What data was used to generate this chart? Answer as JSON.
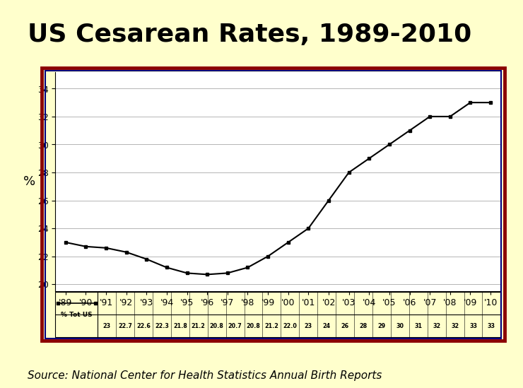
{
  "title": "US Cesarean Rates, 1989-2010",
  "source": "Source: National Center for Health Statistics Annual Birth Reports",
  "ylabel": "%",
  "years": [
    "'89",
    "'90",
    "'91",
    "'92",
    "'93",
    "'94",
    "'95",
    "'96",
    "'97",
    "'98",
    "'99",
    "'00",
    "'01",
    "'02",
    "'03",
    "'04",
    "'05",
    "'06",
    "'07",
    "'08",
    "'09",
    "'10"
  ],
  "values": [
    23,
    22.7,
    22.6,
    22.3,
    21.8,
    21.2,
    20.8,
    20.7,
    20.8,
    21.2,
    22.0,
    23,
    24,
    26,
    28,
    29,
    30,
    31,
    32,
    32,
    33,
    33
  ],
  "val_labels": [
    "23",
    "22.7",
    "22.6",
    "22.3",
    "21.8",
    "21.2",
    "20.8",
    "20.7",
    "20.8",
    "21.2",
    "22.0",
    "23",
    "24",
    "26",
    "28",
    "29",
    "30",
    "31",
    "32",
    "32",
    "33",
    "33"
  ],
  "yticks": [
    20,
    22,
    24,
    26,
    28,
    30,
    32,
    34
  ],
  "ylim": [
    19.5,
    35.2
  ],
  "background_color": "#ffffcc",
  "plot_bg_color": "#ffffff",
  "border_outer_color": "#8b0000",
  "border_inner_color": "#000080",
  "line_color": "#000000",
  "title_color": "#000000",
  "legend_label": "% Tot US",
  "title_fontsize": 26,
  "tick_fontsize": 9,
  "source_fontsize": 11
}
